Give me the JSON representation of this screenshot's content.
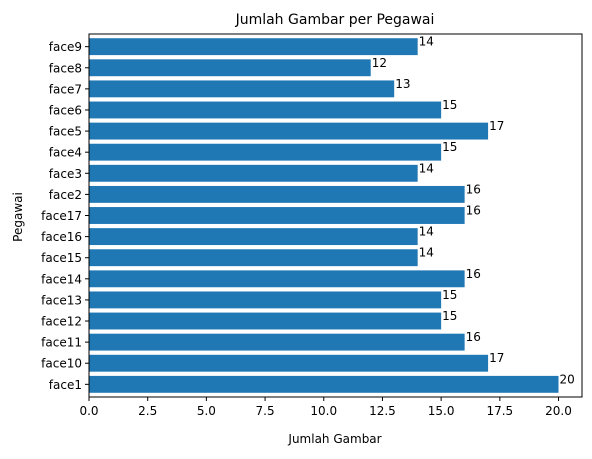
{
  "chart_data": {
    "type": "bar",
    "orientation": "horizontal",
    "title": "Jumlah Gambar per Pegawai",
    "xlabel": "Jumlah Gambar",
    "ylabel": "Pegawai",
    "categories": [
      "face1",
      "face10",
      "face11",
      "face12",
      "face13",
      "face14",
      "face15",
      "face16",
      "face17",
      "face2",
      "face3",
      "face4",
      "face5",
      "face6",
      "face7",
      "face8",
      "face9"
    ],
    "values": [
      20,
      17,
      16,
      15,
      15,
      16,
      14,
      14,
      16,
      16,
      14,
      15,
      17,
      15,
      13,
      12,
      14
    ],
    "xlim": [
      0,
      21
    ],
    "xticks": [
      "0.0",
      "2.5",
      "5.0",
      "7.5",
      "10.0",
      "12.5",
      "15.0",
      "17.5",
      "20.0"
    ],
    "bar_color": "#1f77b4",
    "grid": false,
    "data_labels": true
  }
}
